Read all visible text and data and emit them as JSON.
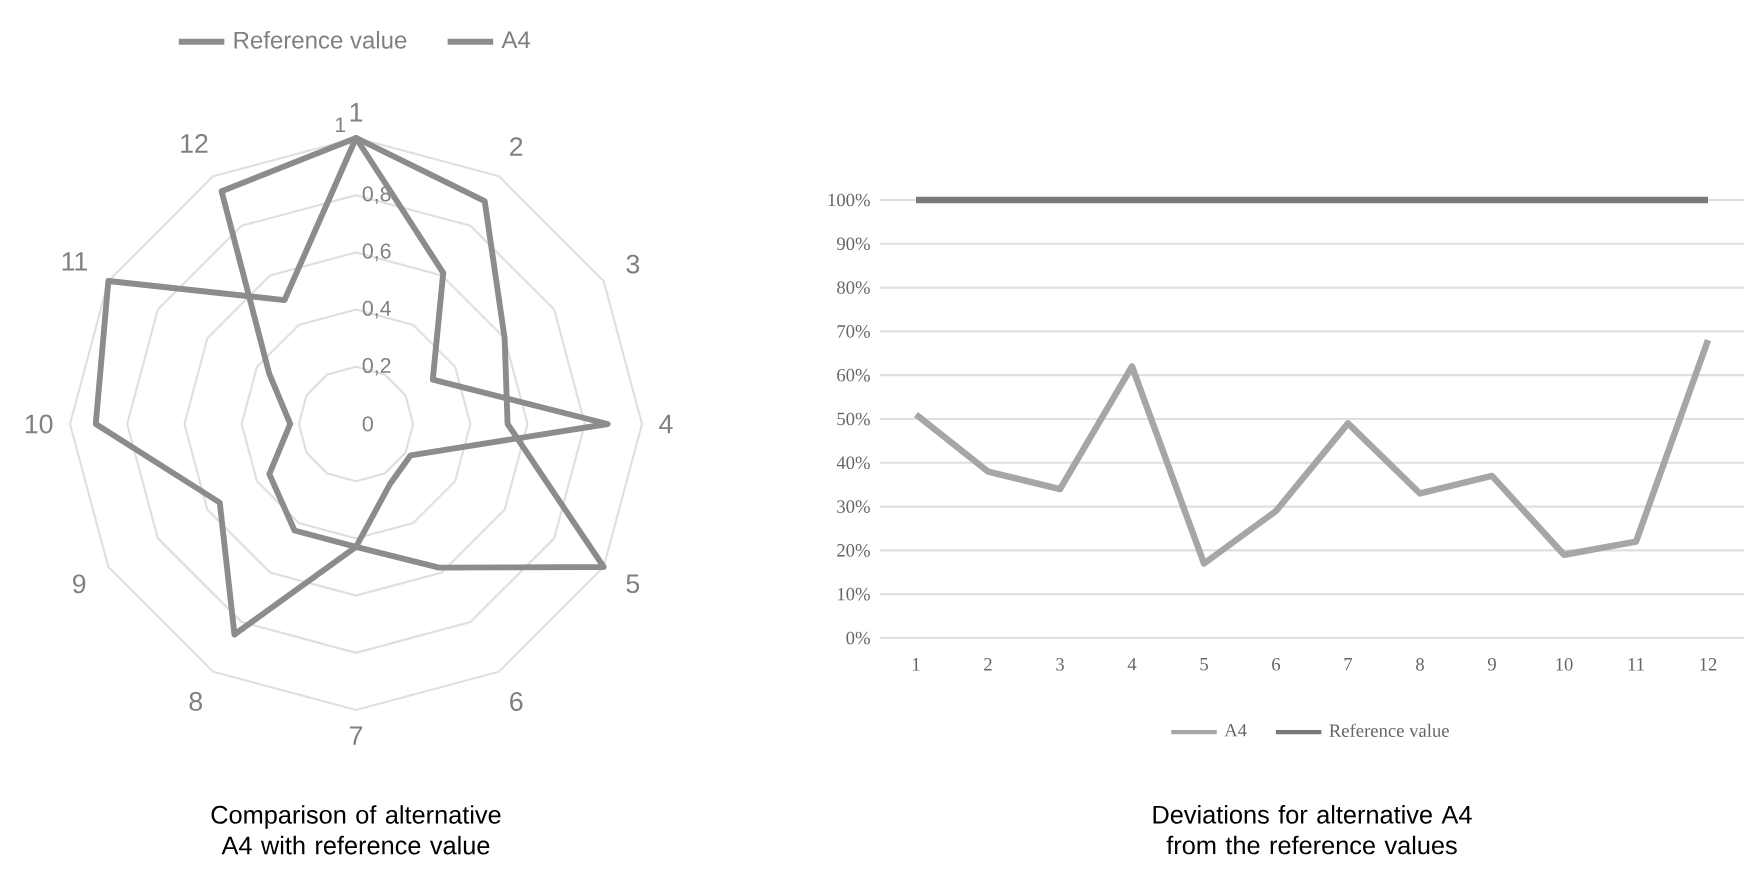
{
  "chart_data": [
    {
      "type": "radar",
      "title": "Comparison of alternative A4 with reference value",
      "categories": [
        "1",
        "2",
        "3",
        "4",
        "5",
        "6",
        "7",
        "8",
        "9",
        "10",
        "11",
        "12"
      ],
      "series": [
        {
          "name": "Reference value",
          "color": "#8c8c8c",
          "values": [
            1,
            0.9,
            0.6,
            0.53,
            1,
            0.58,
            0.43,
            0.85,
            0.55,
            0.91,
            1,
            0.5
          ]
        },
        {
          "name": "A4",
          "color": "#8c8c8c",
          "values": [
            1,
            0.61,
            0.31,
            0.88,
            0.22,
            0.24,
            0.43,
            0.43,
            0.35,
            0.23,
            0.35,
            0.94
          ]
        }
      ],
      "ylim": [
        0,
        1
      ],
      "yticks": [
        0,
        {
          "value": 0.2,
          "label": "0,2"
        },
        {
          "value": 0.4,
          "label": "0,4"
        },
        {
          "value": 0.6,
          "label": "0,6"
        },
        {
          "value": 0.8,
          "label": "0,8"
        },
        1
      ],
      "grid": true,
      "legend": "top"
    },
    {
      "type": "line",
      "title": "Deviations for alternative A4 from the reference values",
      "categories": [
        "1",
        "2",
        "3",
        "4",
        "5",
        "6",
        "7",
        "8",
        "9",
        "10",
        "11",
        "12"
      ],
      "series": [
        {
          "name": "A4",
          "color": "#a6a6a6",
          "values": [
            51,
            38,
            34,
            62,
            17,
            29,
            49,
            33,
            37,
            19,
            22,
            68
          ]
        },
        {
          "name": "Reference value",
          "color": "#7a7a7a",
          "values": [
            100,
            100,
            100,
            100,
            100,
            100,
            100,
            100,
            100,
            100,
            100,
            100
          ]
        }
      ],
      "ylim": [
        0,
        100
      ],
      "yticks": [
        {
          "value": 0,
          "label": "0%"
        },
        {
          "value": 10,
          "label": "10%"
        },
        {
          "value": 20,
          "label": "20%"
        },
        {
          "value": 30,
          "label": "30%"
        },
        {
          "value": 40,
          "label": "40%"
        },
        {
          "value": 50,
          "label": "50%"
        },
        {
          "value": 60,
          "label": "60%"
        },
        {
          "value": 70,
          "label": "70%"
        },
        {
          "value": 80,
          "label": "80%"
        },
        {
          "value": 90,
          "label": "90%"
        },
        {
          "value": 100,
          "label": "100%"
        }
      ],
      "grid": "y",
      "legend": "bottom"
    }
  ]
}
